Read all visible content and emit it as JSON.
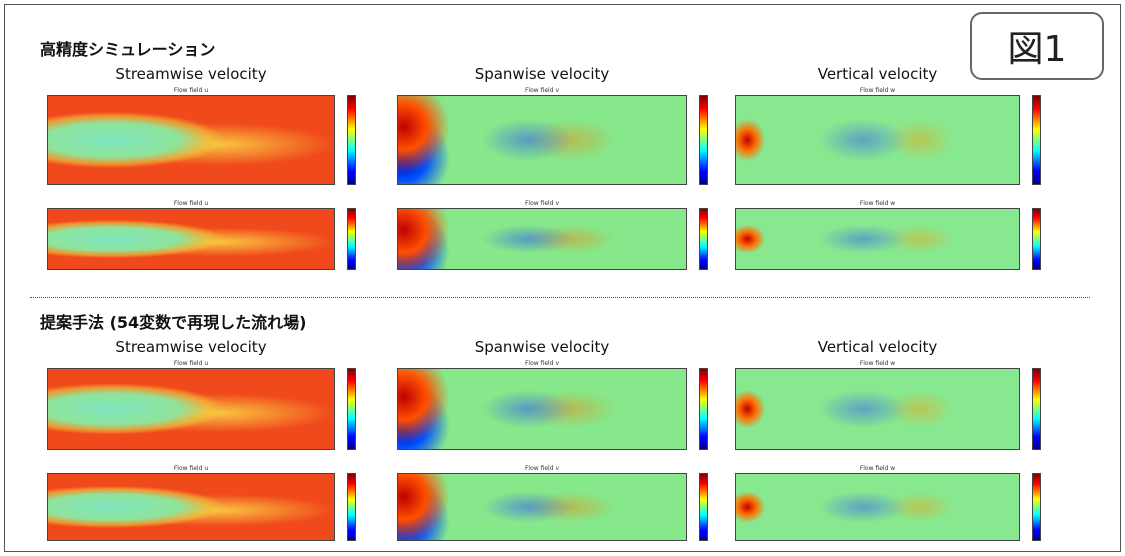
{
  "badge": "図1",
  "sections": [
    {
      "title": "高精度シミュレーション",
      "columns": [
        "Streamwise velocity",
        "Spanwise velocity",
        "Vertical velocity"
      ],
      "panels": [
        [
          "Flow field u",
          "Flow field v",
          "Flow field w"
        ],
        [
          "Flow field u",
          "Flow field v",
          "Flow field w"
        ]
      ]
    },
    {
      "title": "提案手法 (54変数で再現した流れ場)",
      "columns": [
        "Streamwise velocity",
        "Spanwise velocity",
        "Vertical velocity"
      ],
      "panels": [
        [
          "Flow field u",
          "Flow field v",
          "Flow field w"
        ],
        [
          "Flow field u",
          "Flow field v",
          "Flow field w"
        ]
      ]
    }
  ]
}
